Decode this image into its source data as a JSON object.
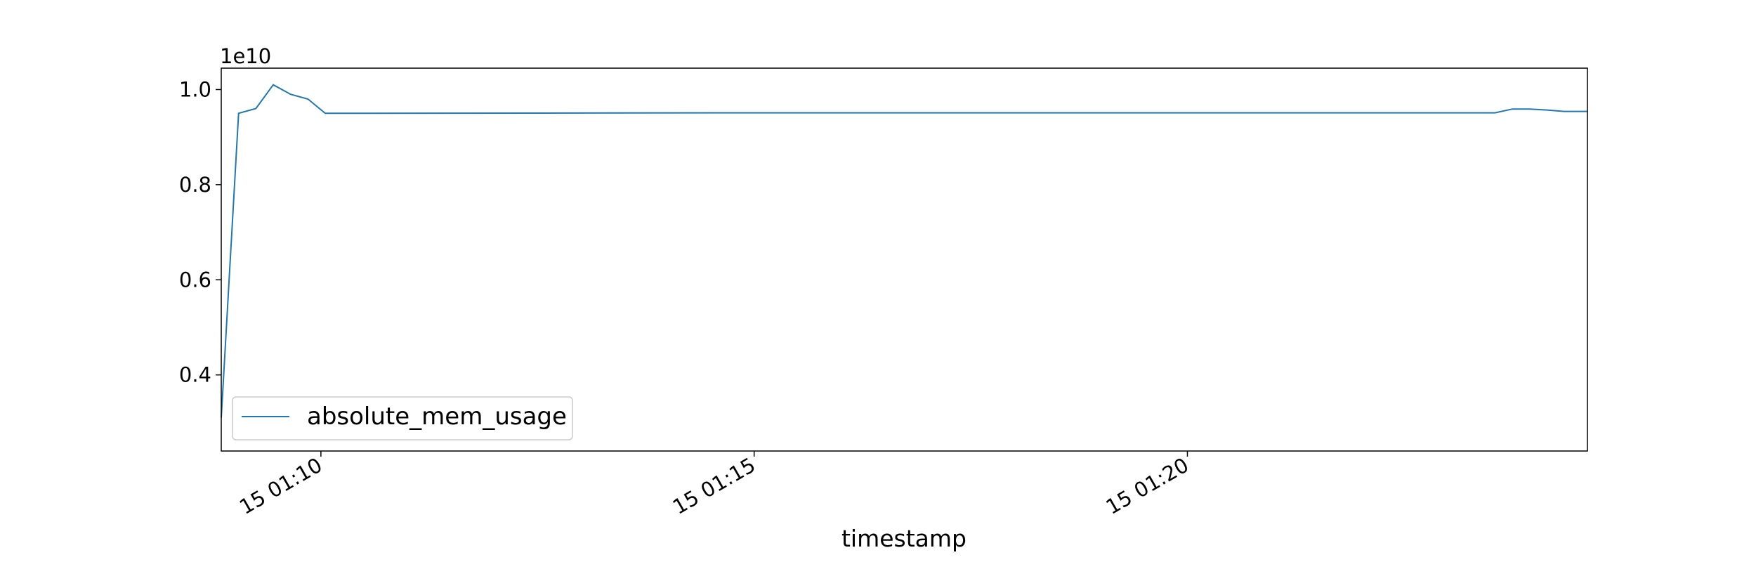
{
  "chart_data": {
    "type": "line",
    "title": "",
    "xlabel": "timestamp",
    "ylabel": "",
    "y_offset_label": "1e10",
    "x_range": [
      "15 01:08:51",
      "15 01:24:37"
    ],
    "ylim": [
      0.24,
      1.045
    ],
    "x_ticks": [
      {
        "value": "15 01:10:00",
        "label": "15 01:10"
      },
      {
        "value": "15 01:15:00",
        "label": "15 01:15"
      },
      {
        "value": "15 01:20:00",
        "label": "15 01:20"
      }
    ],
    "y_ticks": [
      {
        "value": 0.4,
        "label": "0.4"
      },
      {
        "value": 0.6,
        "label": "0.6"
      },
      {
        "value": 0.8,
        "label": "0.8"
      },
      {
        "value": 1.0,
        "label": "1.0"
      }
    ],
    "grid": false,
    "legend": {
      "position": "lower-left",
      "entries": [
        "absolute_mem_usage"
      ]
    },
    "series": [
      {
        "name": "absolute_mem_usage",
        "color": "#1f77b4",
        "points": [
          [
            "15 01:08:51",
            0.31
          ],
          [
            "15 01:09:03",
            0.95
          ],
          [
            "15 01:09:15",
            0.96
          ],
          [
            "15 01:09:27",
            1.01
          ],
          [
            "15 01:09:39",
            0.99
          ],
          [
            "15 01:09:51",
            0.98
          ],
          [
            "15 01:10:03",
            0.95
          ],
          [
            "15 01:15:00",
            0.951
          ],
          [
            "15 01:20:00",
            0.951
          ],
          [
            "15 01:23:33",
            0.951
          ],
          [
            "15 01:23:45",
            0.959
          ],
          [
            "15 01:23:57",
            0.959
          ],
          [
            "15 01:24:09",
            0.957
          ],
          [
            "15 01:24:21",
            0.954
          ],
          [
            "15 01:24:37",
            0.954
          ]
        ]
      }
    ]
  }
}
